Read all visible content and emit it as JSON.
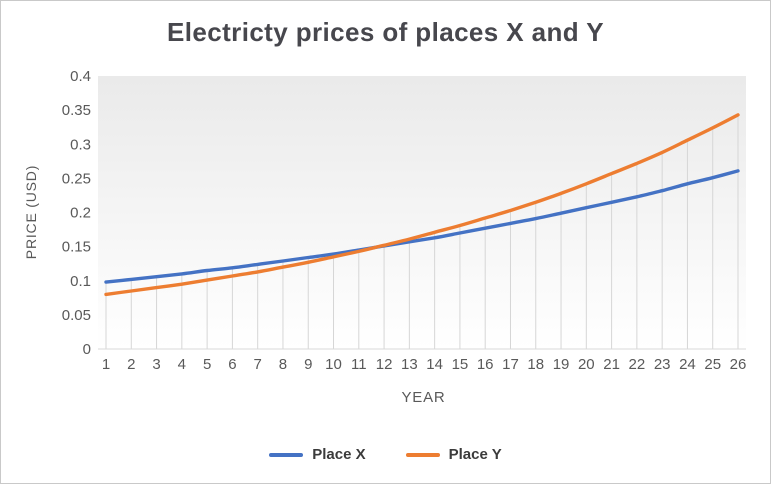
{
  "chart_data": {
    "type": "line",
    "title": "Electricty prices of places X and Y",
    "xlabel": "YEAR",
    "ylabel": "PRICE (USD)",
    "x": [
      1,
      2,
      3,
      4,
      5,
      6,
      7,
      8,
      9,
      10,
      11,
      12,
      13,
      14,
      15,
      16,
      17,
      18,
      19,
      20,
      21,
      22,
      23,
      24,
      25,
      26
    ],
    "x_tick_labels": [
      "1",
      "2",
      "3",
      "4",
      "5",
      "6",
      "7",
      "8",
      "9",
      "10",
      "11",
      "12",
      "13",
      "14",
      "15",
      "16",
      "17",
      "18",
      "19",
      "20",
      "21",
      "22",
      "23",
      "24",
      "25",
      "26"
    ],
    "y_ticks": [
      0,
      0.05,
      0.1,
      0.15,
      0.2,
      0.25,
      0.3,
      0.35,
      0.4
    ],
    "y_tick_labels": [
      "0",
      "0.05",
      "0.1",
      "0.15",
      "0.2",
      "0.25",
      "0.3",
      "0.35",
      "0.4"
    ],
    "ylim": [
      0,
      0.4
    ],
    "grid": "vertical drop lines from each data point to x-axis",
    "legend_position": "bottom",
    "plot_background": "vertical gradient light gray to white",
    "series": [
      {
        "name": "Place X",
        "color": "#4472C4",
        "values": [
          0.098,
          0.102,
          0.106,
          0.11,
          0.115,
          0.119,
          0.124,
          0.129,
          0.134,
          0.139,
          0.145,
          0.151,
          0.157,
          0.163,
          0.17,
          0.177,
          0.184,
          0.191,
          0.199,
          0.207,
          0.215,
          0.223,
          0.232,
          0.242,
          0.251,
          0.261
        ]
      },
      {
        "name": "Place Y",
        "color": "#ED7D31",
        "values": [
          0.08,
          0.085,
          0.09,
          0.095,
          0.101,
          0.107,
          0.113,
          0.12,
          0.127,
          0.135,
          0.143,
          0.152,
          0.161,
          0.171,
          0.181,
          0.192,
          0.203,
          0.215,
          0.228,
          0.242,
          0.257,
          0.272,
          0.288,
          0.306,
          0.324,
          0.343
        ]
      }
    ]
  }
}
